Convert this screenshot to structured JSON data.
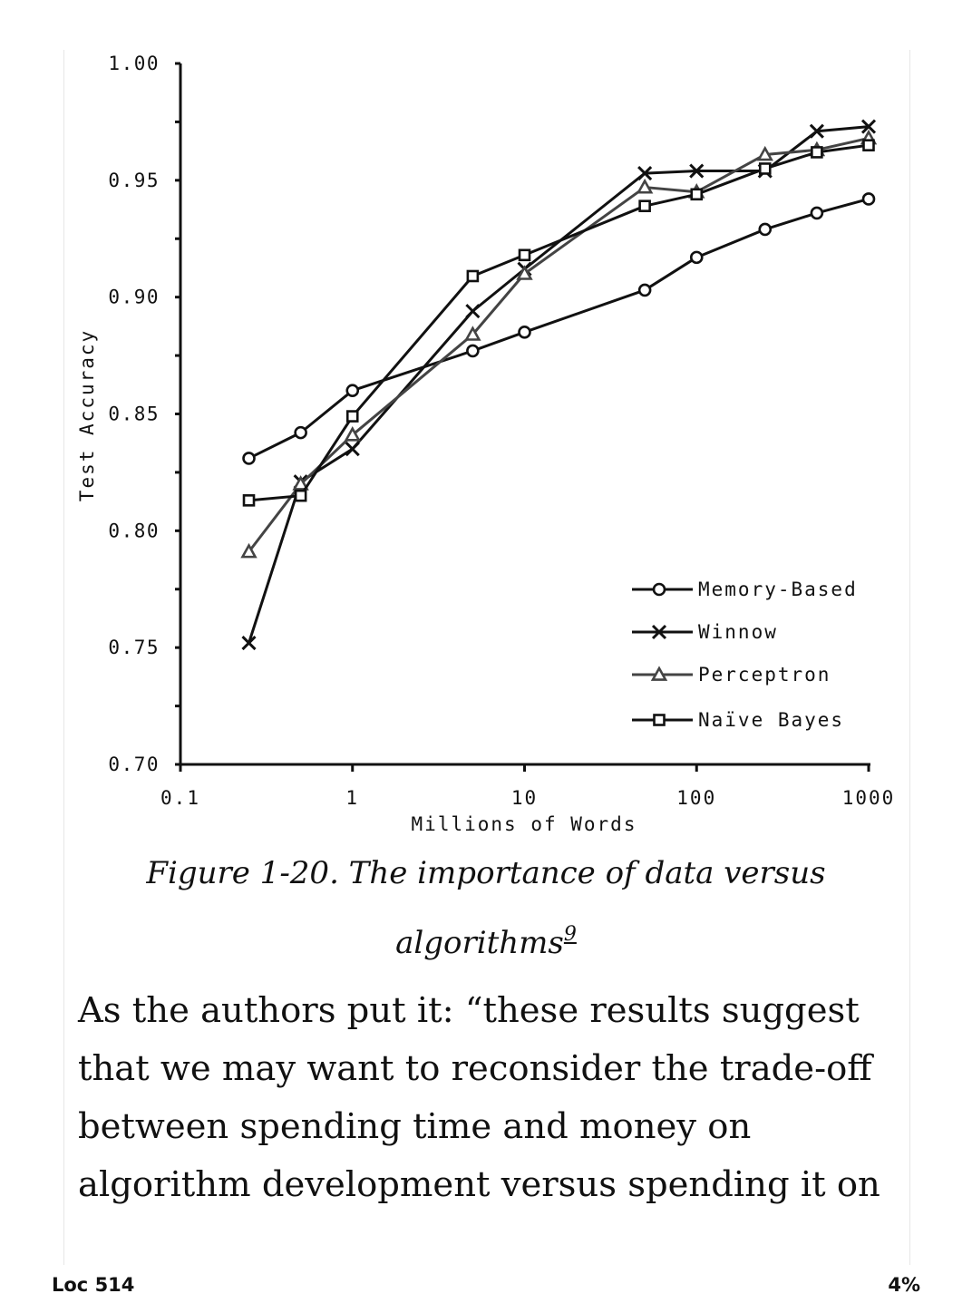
{
  "chart_data": {
    "type": "line",
    "xlabel": "Millions of Words",
    "ylabel": "Test Accuracy",
    "x_scale": "log",
    "xlim": [
      0.1,
      1000
    ],
    "ylim": [
      0.7,
      1.0
    ],
    "x_ticks": [
      "0.1",
      "1",
      "10",
      "100",
      "1000"
    ],
    "y_ticks": [
      "0.70",
      "0.75",
      "0.80",
      "0.85",
      "0.90",
      "0.95",
      "1.00"
    ],
    "legend_position": "bottom-right",
    "series": [
      {
        "name": "Memory-Based",
        "marker": "circle",
        "color": "#111111",
        "x": [
          0.25,
          0.5,
          1,
          5,
          10,
          50,
          100,
          250,
          500,
          1000
        ],
        "values": [
          0.831,
          0.842,
          0.86,
          0.877,
          0.885,
          0.903,
          0.917,
          0.929,
          0.936,
          0.942
        ]
      },
      {
        "name": "Winnow",
        "marker": "x",
        "color": "#111111",
        "x": [
          0.25,
          0.5,
          1,
          5,
          10,
          50,
          100,
          250,
          500,
          1000
        ],
        "values": [
          0.752,
          0.821,
          0.835,
          0.894,
          0.912,
          0.953,
          0.954,
          0.954,
          0.971,
          0.973
        ]
      },
      {
        "name": "Perceptron",
        "marker": "triangle",
        "color": "#444444",
        "x": [
          0.25,
          0.5,
          1,
          5,
          10,
          50,
          100,
          250,
          500,
          1000
        ],
        "values": [
          0.791,
          0.82,
          0.841,
          0.884,
          0.91,
          0.947,
          0.945,
          0.961,
          0.963,
          0.968
        ]
      },
      {
        "name": "Naïve Bayes",
        "marker": "square",
        "color": "#111111",
        "x": [
          0.25,
          0.5,
          1,
          5,
          10,
          50,
          100,
          250,
          500,
          1000
        ],
        "values": [
          0.813,
          0.815,
          0.849,
          0.909,
          0.918,
          0.939,
          0.944,
          0.955,
          0.962,
          0.965
        ]
      }
    ]
  },
  "caption": {
    "line1": "Figure 1-20. The importance of data versus",
    "line2": "algorithms",
    "footnote": "9"
  },
  "body": {
    "lines": [
      "As the authors put it: “these results suggest",
      "that we may want to reconsider the trade-off",
      "between spending time and money on",
      "algorithm development versus spending it on"
    ]
  },
  "footer": {
    "location": "Loc 514",
    "progress": "4%"
  }
}
